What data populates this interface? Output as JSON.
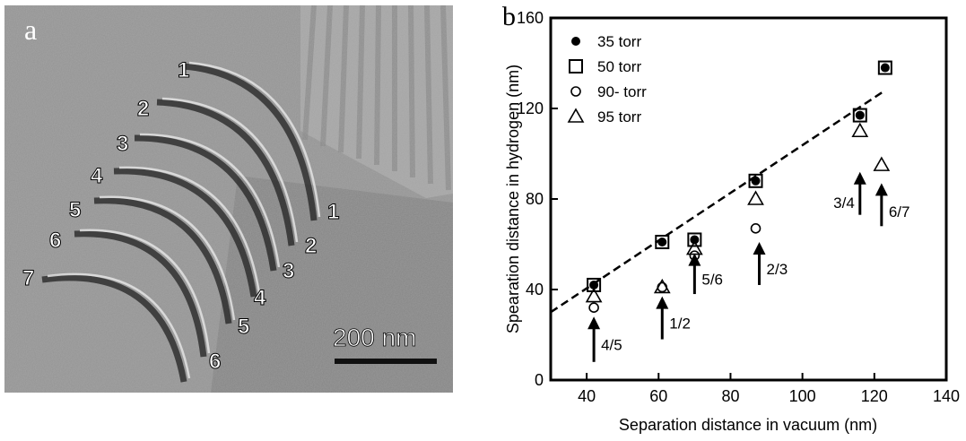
{
  "panel_a": {
    "panel_label": "a",
    "scale_bar_label": "200 nm",
    "left_labels": [
      "1",
      "2",
      "3",
      "4",
      "5",
      "6",
      "7"
    ],
    "right_labels": [
      "1",
      "2",
      "3",
      "4",
      "5",
      "6"
    ]
  },
  "chart_data": {
    "type": "scatter",
    "panel_label": "b",
    "title": "",
    "xlabel": "Separation distance in vacuum (nm)",
    "ylabel": "Spearation distance in hydrogen (nm)",
    "xlim": [
      30,
      140
    ],
    "ylim": [
      0,
      160
    ],
    "x_ticks": [
      40,
      60,
      80,
      100,
      120,
      140
    ],
    "y_ticks": [
      0,
      40,
      80,
      120,
      160
    ],
    "grid": false,
    "legend_position": "top-left",
    "series": [
      {
        "name": "35 torr",
        "marker": "filled-circle",
        "points": [
          [
            42,
            42
          ],
          [
            61,
            61
          ],
          [
            70,
            62
          ],
          [
            87,
            88
          ],
          [
            116,
            117
          ],
          [
            123,
            138
          ]
        ]
      },
      {
        "name": "50 torr",
        "marker": "open-square",
        "points": [
          [
            42,
            42
          ],
          [
            61,
            61
          ],
          [
            70,
            62
          ],
          [
            87,
            88
          ],
          [
            116,
            117
          ],
          [
            123,
            138
          ]
        ]
      },
      {
        "name": "90- torr",
        "marker": "open-circle",
        "points": [
          [
            42,
            32
          ],
          [
            61,
            41
          ],
          [
            70,
            55
          ],
          [
            87,
            67
          ]
        ]
      },
      {
        "name": "95 torr",
        "marker": "open-triangle",
        "points": [
          [
            42,
            37
          ],
          [
            61,
            41
          ],
          [
            70,
            58
          ],
          [
            87,
            80
          ],
          [
            116,
            110
          ],
          [
            122,
            95
          ]
        ]
      }
    ],
    "fit_line": {
      "style": "dashed",
      "points": [
        [
          30,
          30
        ],
        [
          123,
          128
        ]
      ]
    },
    "annotations": [
      {
        "text": "4/5",
        "arrow_x": 42,
        "arrow_y_from": 8,
        "arrow_y_to": 28
      },
      {
        "text": "1/2",
        "arrow_x": 61,
        "arrow_y_from": 18,
        "arrow_y_to": 37
      },
      {
        "text": "5/6",
        "arrow_x": 70,
        "arrow_y_from": 38,
        "arrow_y_to": 56
      },
      {
        "text": "2/3",
        "arrow_x": 88,
        "arrow_y_from": 42,
        "arrow_y_to": 61
      },
      {
        "text": "3/4",
        "arrow_x": 116,
        "arrow_y_from": 73,
        "arrow_y_to": 92
      },
      {
        "text": "6/7",
        "arrow_x": 122,
        "arrow_y_from": 68,
        "arrow_y_to": 87
      }
    ]
  }
}
